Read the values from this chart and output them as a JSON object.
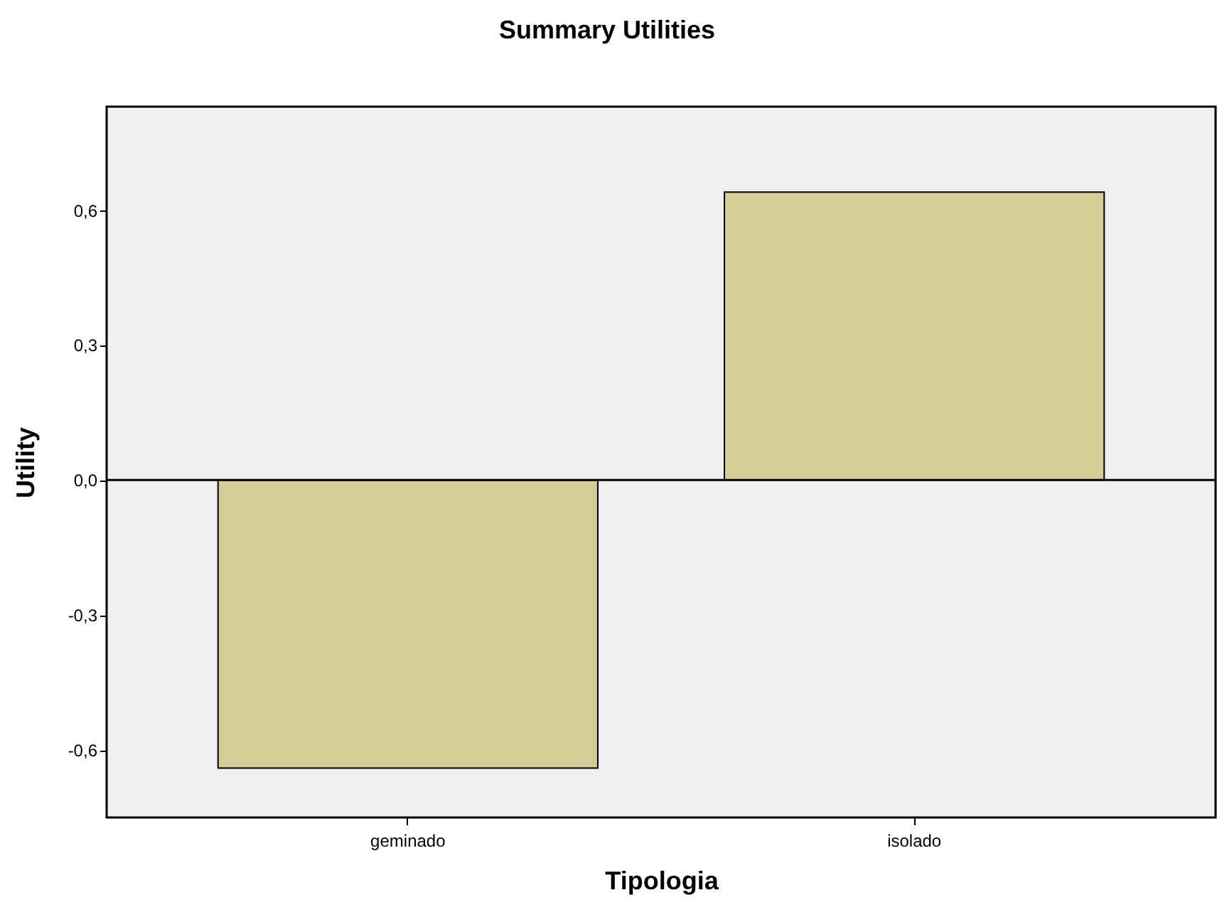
{
  "chart_data": {
    "type": "bar",
    "title": "Summary Utilities",
    "xlabel": "Tipologia",
    "ylabel": "Utility",
    "categories": [
      "geminado",
      "isolado"
    ],
    "series": [
      {
        "color": "#d3cd98",
        "values": [
          -0.64,
          0.64
        ]
      }
    ],
    "ylim": [
      -0.75,
      0.83
    ],
    "yticks": [
      {
        "value": -0.6,
        "label": "-0,6"
      },
      {
        "value": -0.3,
        "label": "-0,3"
      },
      {
        "value": 0,
        "label": "0,0"
      },
      {
        "value": 0.3,
        "label": "0,3"
      },
      {
        "value": 0.6,
        "label": "0,6"
      }
    ],
    "ref_lines": [
      {
        "axis": "y",
        "value": 0,
        "color": "#000000"
      }
    ],
    "grid": false
  }
}
